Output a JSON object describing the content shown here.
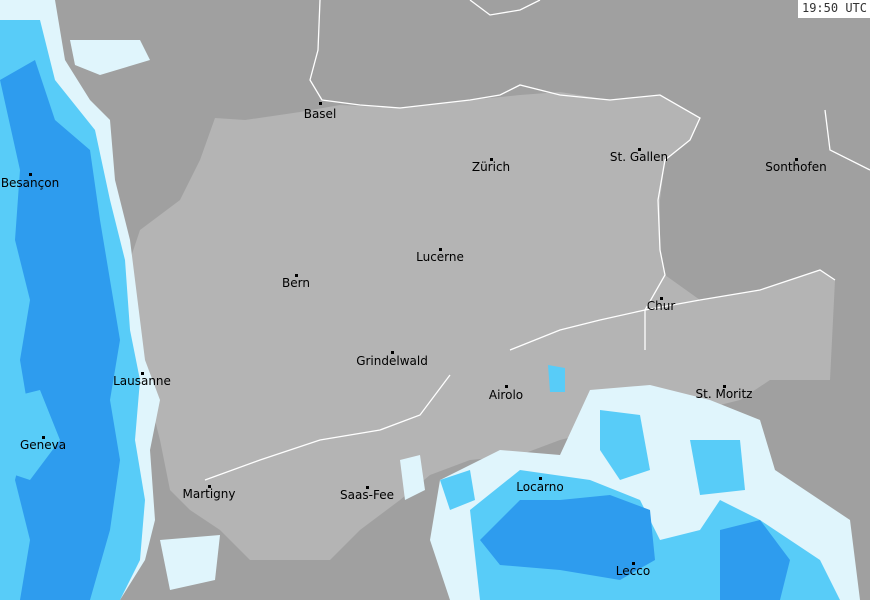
{
  "timestamp": "19:50 UTC",
  "colors": {
    "outside": "#a0a0a0",
    "switzerland": "#b4b4b4",
    "border": "#ffffff",
    "rain_light": "#e0f5fc",
    "rain_moderate": "#58ccf8",
    "rain_heavy": "#2e9cee",
    "rain_veryheavy": "#1f7fe0"
  },
  "cities": [
    "Basel",
    "Zürich",
    "St. Gallen",
    "Sonthofen",
    "Besançon",
    "Lucerne",
    "Bern",
    "Chur",
    "Grindelwald",
    "Lausanne",
    "Airolo",
    "St. Moritz",
    "Geneva",
    "Martigny",
    "Saas-Fee",
    "Locarno",
    "Lecco"
  ]
}
